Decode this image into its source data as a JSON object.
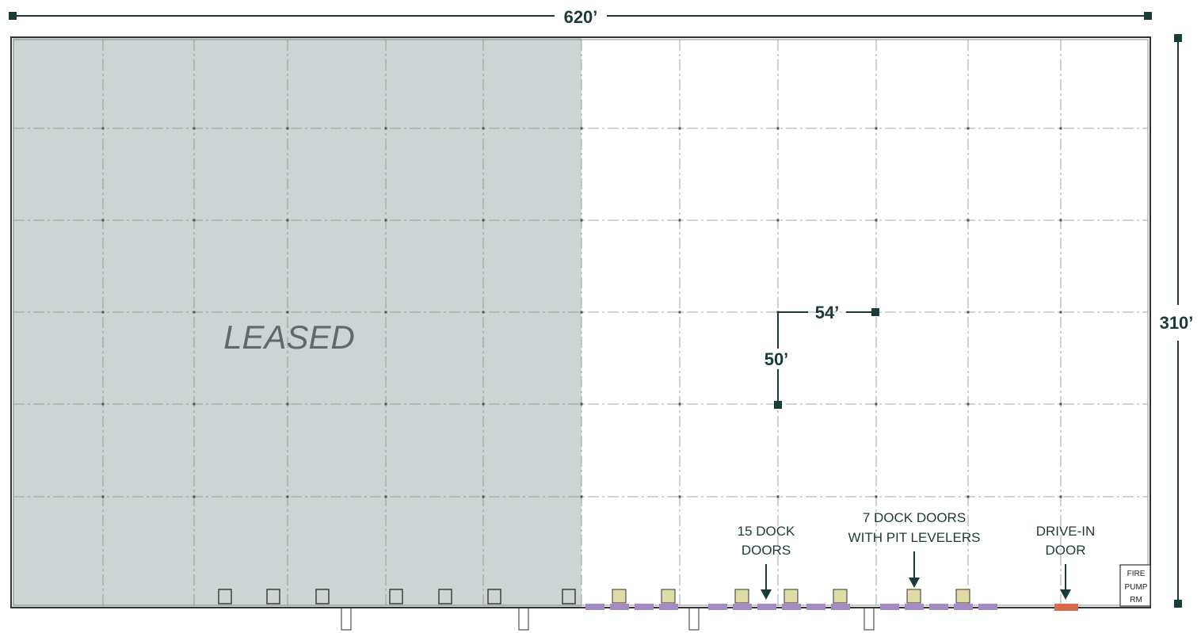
{
  "dimensions": {
    "width_label": "620’",
    "height_label": "310’",
    "bay_width_label": "54’",
    "bay_depth_label": "50’"
  },
  "leased_area": {
    "label": "LEASED"
  },
  "callouts": {
    "dock_doors": {
      "line1": "15 DOCK",
      "line2": "DOORS"
    },
    "pit_levelers": {
      "line1": "7 DOCK DOORS",
      "line2": "WITH PIT LEVELERS"
    },
    "drive_in": {
      "line1": "DRIVE-IN",
      "line2": "DOOR"
    }
  },
  "fire_pump_room": {
    "line1": "FIRE",
    "line2": "PUMP",
    "line3": "RM"
  },
  "colors": {
    "leased": "#cdd5d4",
    "dimension": "#1a3c38",
    "dock_door": "#a58bc3",
    "pit_leveler": "#dfdca7",
    "drive_in_door": "#d9694b",
    "grid": "#8a8a8a"
  },
  "door_counts": {
    "dock_doors": 15,
    "pit_levelers": 7,
    "drive_in_doors": 1
  }
}
